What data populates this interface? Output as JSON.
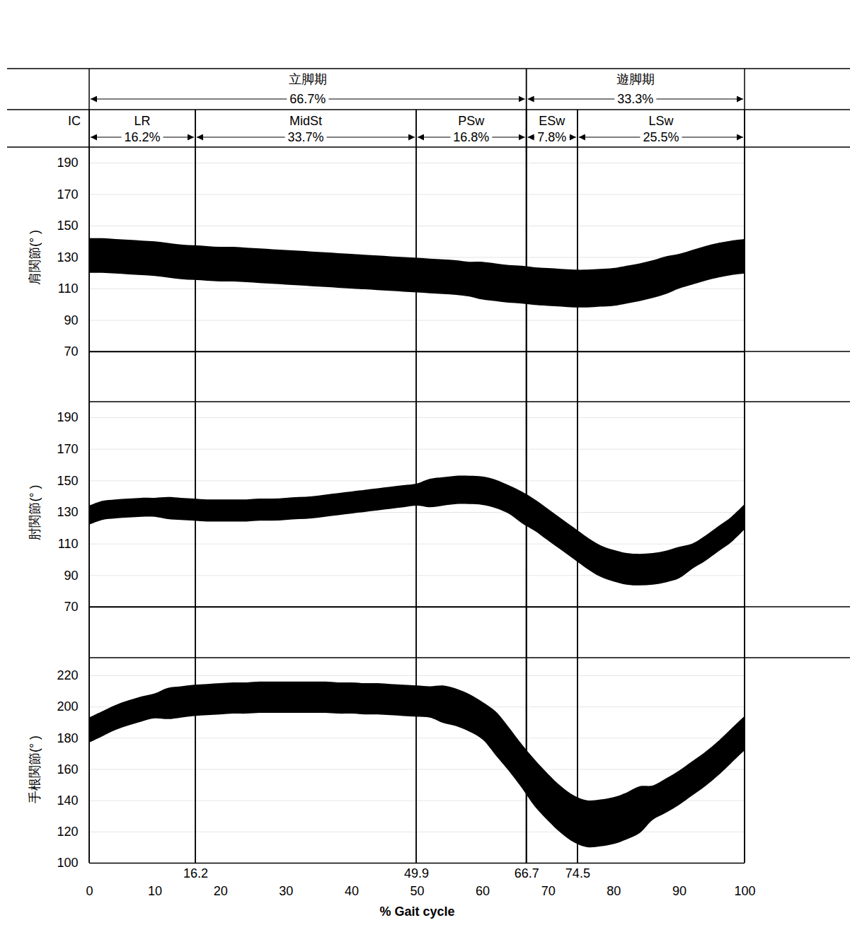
{
  "phase_table": {
    "ic_label": "IC",
    "periods": [
      {
        "label": "立脚期",
        "range": [
          0,
          66.7
        ],
        "percent": "66.7%"
      },
      {
        "label": "遊脚期",
        "range": [
          66.7,
          100
        ],
        "percent": "33.3%"
      }
    ],
    "phases": [
      {
        "label": "LR",
        "range": [
          0,
          16.2
        ],
        "percent": "16.2%"
      },
      {
        "label": "MidSt",
        "range": [
          16.2,
          49.9
        ],
        "percent": "33.7%"
      },
      {
        "label": "PSw",
        "range": [
          49.9,
          66.7
        ],
        "percent": "16.8%"
      },
      {
        "label": "ESw",
        "range": [
          66.7,
          74.5
        ],
        "percent": "7.8%"
      },
      {
        "label": "LSw",
        "range": [
          74.5,
          100
        ],
        "percent": "25.5%"
      }
    ]
  },
  "chart_data": [
    {
      "type": "line",
      "y_label": "肩関節(° )",
      "color": "#000000",
      "x": [
        0,
        2,
        4,
        6,
        8,
        10,
        12,
        14,
        16,
        18,
        20,
        22,
        24,
        26,
        28,
        30,
        32,
        34,
        36,
        38,
        40,
        42,
        44,
        46,
        48,
        50,
        52,
        54,
        56,
        58,
        60,
        62,
        64,
        66,
        68,
        70,
        72,
        74,
        76,
        78,
        80,
        82,
        84,
        86,
        88,
        90,
        92,
        94,
        96,
        98,
        100
      ],
      "values": [
        131,
        131,
        130.5,
        130,
        129.5,
        129,
        128,
        127,
        126.5,
        126,
        125.5,
        125.5,
        125,
        124.5,
        124,
        123.5,
        123,
        122.5,
        122,
        121.5,
        121,
        120.5,
        120,
        119.5,
        119,
        118.5,
        118,
        117.5,
        117,
        116,
        115,
        114,
        113,
        112.5,
        111.5,
        111,
        110.5,
        110,
        110,
        110.5,
        111,
        112.5,
        114,
        116,
        118.5,
        121,
        123.5,
        126,
        128,
        129.5,
        130.5
      ],
      "errors": [
        11,
        11,
        11,
        11,
        11,
        11,
        11,
        11,
        11,
        11,
        11,
        11,
        11,
        11,
        11,
        11,
        11,
        11,
        11,
        11,
        11,
        11,
        11,
        11,
        11,
        11,
        11,
        11,
        11,
        11,
        12,
        12,
        12,
        12,
        12,
        12,
        12,
        12,
        12,
        12,
        12,
        12,
        12,
        12,
        12,
        11,
        11,
        11,
        11,
        11,
        11
      ],
      "xlim": [
        0,
        100
      ],
      "ylim": [
        70,
        190
      ],
      "yticks": [
        70,
        90,
        110,
        130,
        150,
        170,
        190
      ],
      "grid": true,
      "tick_labels": "y"
    },
    {
      "type": "line",
      "y_label": "肘関節(° )",
      "color": "#000000",
      "x": [
        0,
        2,
        4,
        6,
        8,
        10,
        12,
        14,
        16,
        18,
        20,
        22,
        24,
        26,
        28,
        30,
        32,
        34,
        36,
        38,
        40,
        42,
        44,
        46,
        48,
        50,
        52,
        54,
        56,
        58,
        60,
        62,
        64,
        66,
        68,
        70,
        72,
        74,
        76,
        78,
        80,
        82,
        84,
        86,
        88,
        90,
        92,
        94,
        96,
        98,
        100
      ],
      "values": [
        128,
        131,
        132,
        132.5,
        133,
        133,
        132.5,
        132,
        131.5,
        131,
        131,
        131,
        131,
        131.5,
        131.5,
        132,
        132.5,
        133,
        134,
        135,
        136,
        137,
        138,
        139,
        140,
        141,
        142,
        143,
        144,
        144,
        143.5,
        141.5,
        138,
        133,
        128,
        122,
        116,
        110,
        104,
        99,
        96,
        94,
        93.5,
        94,
        95.5,
        98,
        102,
        107,
        113,
        119,
        127
      ],
      "errors": [
        6,
        6,
        6,
        6,
        6,
        6,
        7,
        7,
        7,
        7,
        7,
        7,
        7,
        7,
        7,
        7,
        7,
        7,
        7,
        7,
        7,
        7,
        7,
        7,
        7,
        7,
        9,
        9,
        9,
        9,
        9,
        9,
        9,
        10,
        10,
        10,
        10,
        10,
        10,
        10,
        10,
        10,
        10,
        10,
        10,
        10,
        8,
        8,
        8,
        8,
        8
      ],
      "xlim": [
        0,
        100
      ],
      "ylim": [
        70,
        190
      ],
      "yticks": [
        70,
        90,
        110,
        130,
        150,
        170,
        190
      ],
      "grid": true,
      "tick_labels": "y"
    },
    {
      "type": "line",
      "y_label": "手根関節(° )",
      "x_label": "% Gait cycle",
      "color": "#000000",
      "x": [
        0,
        2,
        4,
        6,
        8,
        10,
        12,
        14,
        16,
        18,
        20,
        22,
        24,
        26,
        28,
        30,
        32,
        34,
        36,
        38,
        40,
        42,
        44,
        46,
        48,
        50,
        52,
        54,
        56,
        58,
        60,
        62,
        64,
        66,
        68,
        70,
        72,
        74,
        76,
        78,
        80,
        82,
        84,
        86,
        88,
        90,
        92,
        94,
        96,
        98,
        100
      ],
      "values": [
        185,
        189,
        193,
        196,
        198.5,
        200.5,
        202,
        203,
        204,
        204.5,
        205,
        205.5,
        205.5,
        206,
        206,
        206,
        206,
        206,
        206,
        205.5,
        205.5,
        205,
        205,
        204.5,
        204,
        203.5,
        203,
        201.5,
        199.5,
        196,
        191,
        183,
        173,
        162,
        151,
        142,
        134,
        128,
        125,
        125.5,
        127,
        130,
        134,
        138.5,
        143,
        148,
        154,
        160,
        167,
        175,
        183
      ],
      "errors": [
        8,
        8,
        8,
        8,
        8,
        8,
        10,
        10,
        10,
        10,
        10,
        10,
        10,
        10,
        10,
        10,
        10,
        10,
        10,
        10,
        10,
        10,
        10,
        10,
        10,
        10,
        10,
        12,
        12,
        12,
        12,
        14,
        14,
        14,
        15,
        15,
        15,
        15,
        15,
        15,
        15,
        15,
        15,
        11,
        11,
        11,
        11,
        11,
        11,
        11,
        11
      ],
      "xlim": [
        0,
        100
      ],
      "ylim": [
        100,
        220
      ],
      "yticks": [
        100,
        120,
        140,
        160,
        180,
        200,
        220
      ],
      "xticks": [
        0,
        10,
        20,
        30,
        40,
        50,
        60,
        70,
        80,
        90,
        100
      ],
      "phase_ticks": [
        16.2,
        49.9,
        66.7,
        74.5
      ],
      "grid": true
    }
  ]
}
